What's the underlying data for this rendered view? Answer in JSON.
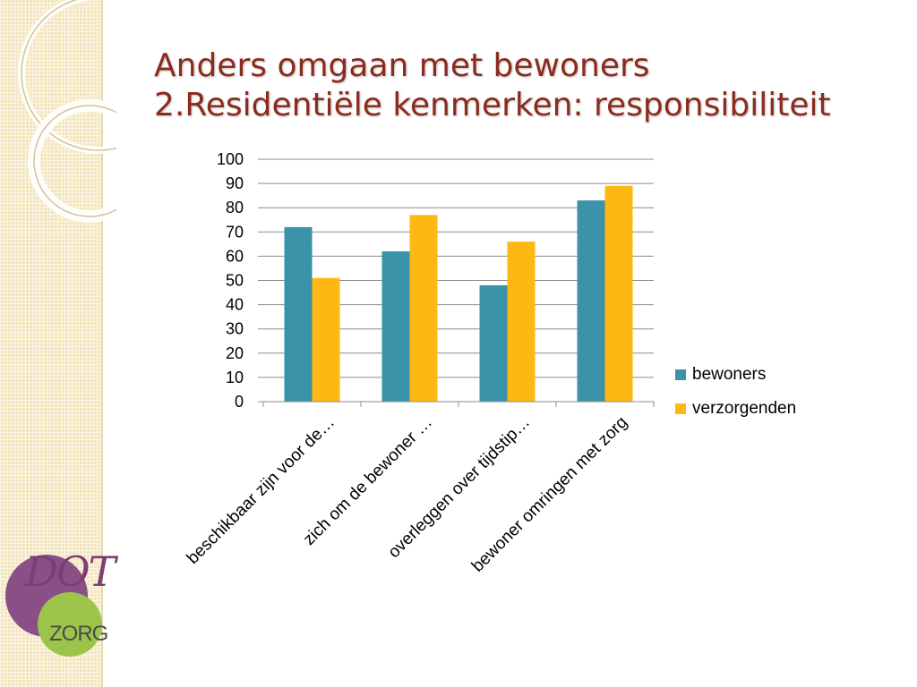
{
  "slide": {
    "title_line1": "Anders omgaan met bewoners",
    "title_line2": "2.Residentiële kenmerken: responsibiliteit"
  },
  "logo": {
    "dot_text": "DOT",
    "zorg_text": "ZORG"
  },
  "colors": {
    "title": "#8c2b1d",
    "bewoners": "#3a93a8",
    "verzorgenden": "#fdb813"
  },
  "chart_data": {
    "type": "bar",
    "categories": [
      "beschikbaar zijn voor de…",
      "zich om de bewoner …",
      "overleggen over tijdstip…",
      "bewoner omringen met zorg"
    ],
    "series": [
      {
        "name": "bewoners",
        "values": [
          72,
          62,
          48,
          83
        ]
      },
      {
        "name": "verzorgenden",
        "values": [
          51,
          77,
          66,
          89
        ]
      }
    ],
    "ylim": [
      0,
      100
    ],
    "yticks": [
      0,
      10,
      20,
      30,
      40,
      50,
      60,
      70,
      80,
      90,
      100
    ],
    "grid": true,
    "legend_position": "right"
  }
}
